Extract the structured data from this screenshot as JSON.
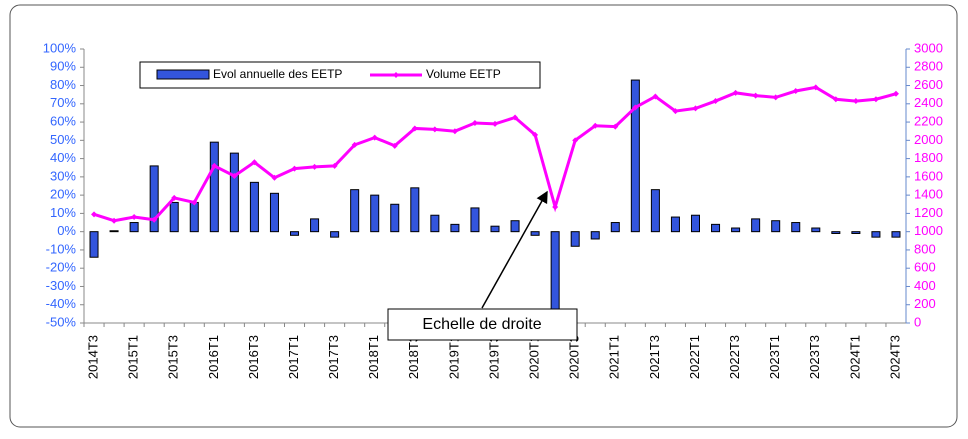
{
  "chart_data": {
    "type": "bar",
    "categories": [
      "2014T3",
      null,
      "2015T1",
      null,
      "2015T3",
      null,
      "2016T1",
      null,
      "2016T3",
      null,
      "2017T1",
      null,
      "2017T3",
      null,
      "2018T1",
      null,
      "2018T3",
      null,
      "2019T1",
      null,
      "2019T3",
      null,
      "2020T1",
      null,
      "2020T3",
      null,
      "2021T1",
      null,
      "2021T3",
      null,
      "2022T1",
      null,
      "2022T3",
      null,
      "2023T1",
      null,
      "2023T3",
      null,
      "2024T1",
      null,
      "2024T3"
    ],
    "series": [
      {
        "name": "Evol annuelle des EETP",
        "type": "bar",
        "color": "#3355dd",
        "values": [
          -14,
          0.5,
          5,
          36,
          16,
          16,
          49,
          43,
          27,
          21,
          -2,
          7,
          -3,
          23,
          20,
          15,
          24,
          9,
          4,
          13,
          3,
          6,
          -2,
          -48,
          -8,
          -4,
          5,
          83,
          23,
          8,
          9,
          4,
          2,
          7,
          6,
          5,
          2,
          -1,
          -1,
          -3,
          -3
        ]
      },
      {
        "name": "Volume EETP",
        "type": "line",
        "axis": "y2",
        "color": "#ff00ff",
        "values": [
          1190,
          1120,
          1160,
          1130,
          1370,
          1320,
          1720,
          1610,
          1760,
          1590,
          1690,
          1710,
          1720,
          1950,
          2030,
          1940,
          2130,
          2120,
          2100,
          2190,
          2180,
          2250,
          2060,
          1270,
          2000,
          2160,
          2150,
          2360,
          2480,
          2320,
          2350,
          2430,
          2520,
          2490,
          2470,
          2540,
          2580,
          2450,
          2430,
          2450,
          2510
        ]
      }
    ],
    "ylim": [
      -50,
      100
    ],
    "yticks": [
      {
        "value": -50,
        "label": "-50%"
      },
      {
        "value": -40,
        "label": "-40%"
      },
      {
        "value": -30,
        "label": "-30%"
      },
      {
        "value": -20,
        "label": "-20%"
      },
      {
        "value": -10,
        "label": "-10%"
      },
      {
        "value": 0,
        "label": "0%"
      },
      {
        "value": 10,
        "label": "10%"
      },
      {
        "value": 20,
        "label": "20%"
      },
      {
        "value": 30,
        "label": "30%"
      },
      {
        "value": 40,
        "label": "40%"
      },
      {
        "value": 50,
        "label": "50%"
      },
      {
        "value": 60,
        "label": "60%"
      },
      {
        "value": 70,
        "label": "70%"
      },
      {
        "value": 80,
        "label": "80%"
      },
      {
        "value": 90,
        "label": "90%"
      },
      {
        "value": 100,
        "label": "100%"
      }
    ],
    "y2lim": [
      0,
      3000
    ],
    "y2ticks": [
      0,
      200,
      400,
      600,
      800,
      1000,
      1200,
      1400,
      1600,
      1800,
      2000,
      2200,
      2400,
      2600,
      2800,
      3000
    ],
    "grid": false,
    "legend": "top",
    "annotation": "Echelle de droite"
  }
}
